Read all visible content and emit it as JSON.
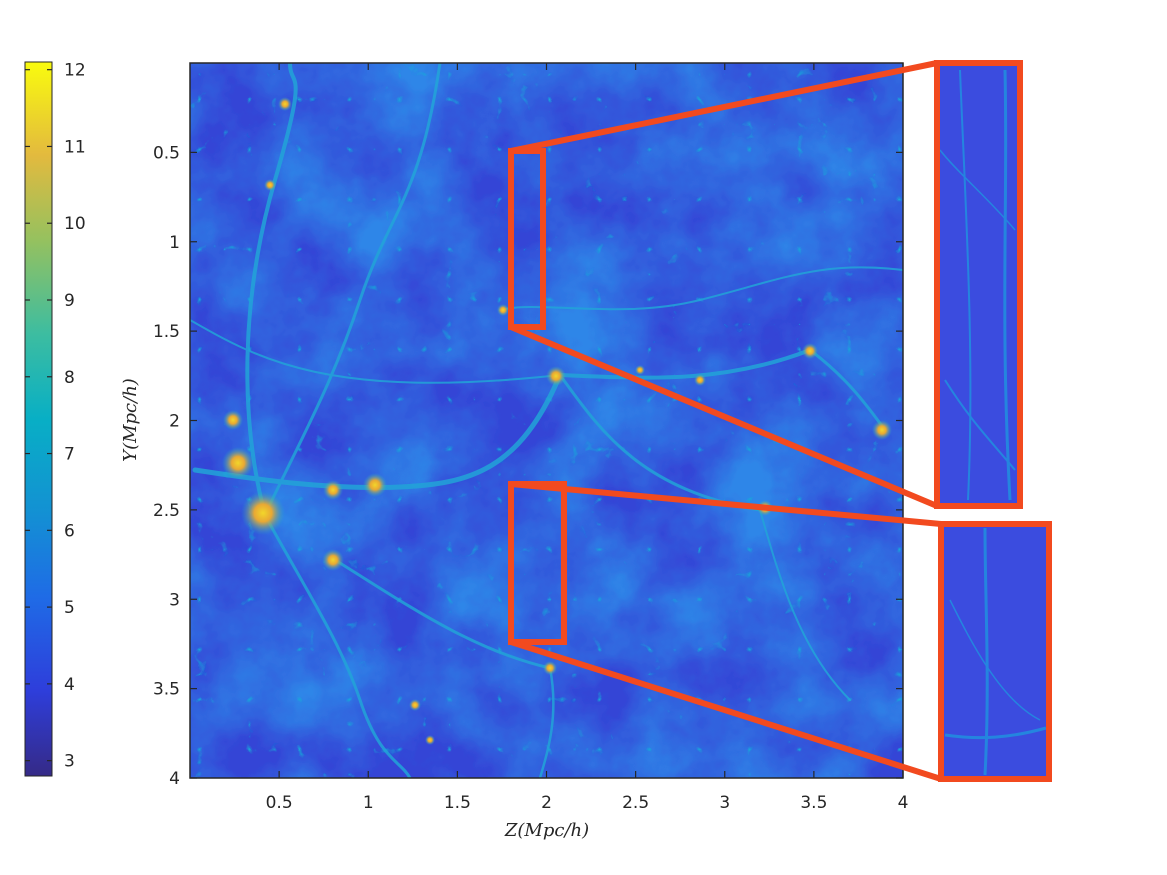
{
  "chart_data": {
    "type": "heatmap",
    "title": "",
    "xlabel": "Z(Mpc/h)",
    "ylabel": "Y(Mpc/h)",
    "xlim": [
      0,
      4
    ],
    "ylim": [
      4,
      0
    ],
    "x_ticks": [
      "0.5",
      "1",
      "1.5",
      "2",
      "2.5",
      "3",
      "3.5",
      "4"
    ],
    "y_ticks": [
      "0.5",
      "1",
      "1.5",
      "2",
      "2.5",
      "3",
      "3.5",
      "4"
    ],
    "colorbar": {
      "range": [
        2.8,
        12.1
      ],
      "ticks": [
        "3",
        "4",
        "5",
        "6",
        "7",
        "8",
        "9",
        "10",
        "11",
        "12"
      ],
      "colormap": "parula"
    },
    "zoom_regions": [
      {
        "z_range": [
          1.8,
          2.0
        ],
        "y_range": [
          0.5,
          1.5
        ]
      },
      {
        "z_range": [
          1.8,
          2.1
        ],
        "y_range": [
          2.4,
          3.25
        ]
      }
    ],
    "highlight_color": "#F24A1F"
  }
}
